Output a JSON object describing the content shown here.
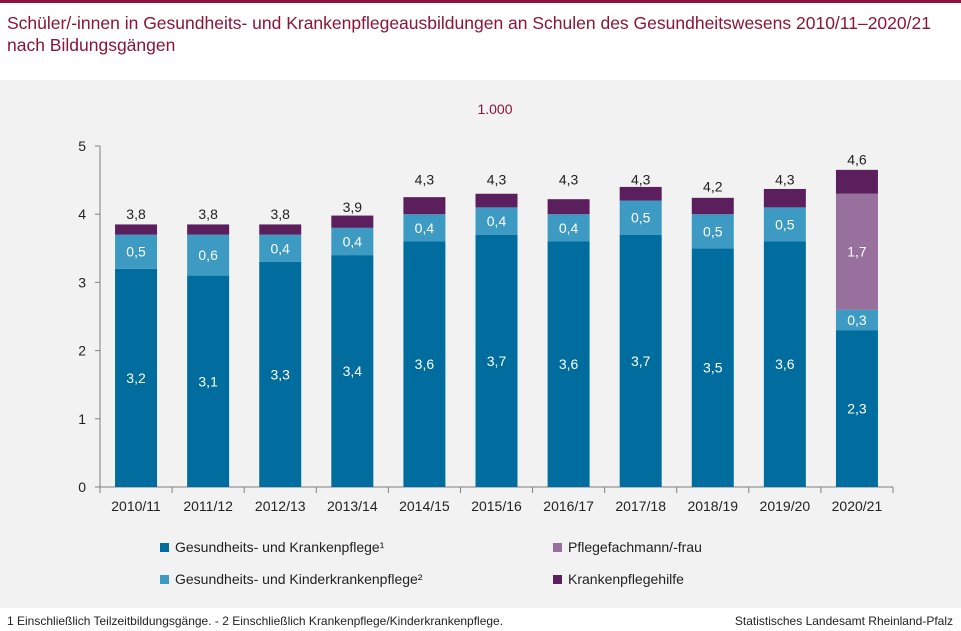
{
  "title": "Schüler/-innen in Gesundheits- und Krankenpflegeausbildungen an Schulen des Gesundheitswesens 2010/11–2020/21 nach Bildungsgängen",
  "unit": "1.000",
  "footnote": "1 Einschließlich Teilzeitbildungsgänge.   - 2 Einschließlich Krankenpflege/Kinderkrankenpflege.",
  "source": "Statistisches Landesamt Rheinland-Pfalz",
  "chart_data": {
    "type": "bar",
    "stacked": true,
    "categories": [
      "2010/11",
      "2011/12",
      "2012/13",
      "2013/14",
      "2014/15",
      "2015/16",
      "2016/17",
      "2017/18",
      "2018/19",
      "2019/20",
      "2020/21"
    ],
    "series": [
      {
        "name": "Gesundheits- und Krankenpflege¹",
        "color": "#006d9e",
        "values": [
          3.2,
          3.1,
          3.3,
          3.4,
          3.6,
          3.7,
          3.6,
          3.7,
          3.5,
          3.6,
          2.3
        ],
        "labels": [
          "3,2",
          "3,1",
          "3,3",
          "3,4",
          "3,6",
          "3,7",
          "3,6",
          "3,7",
          "3,5",
          "3,6",
          "2,3"
        ]
      },
      {
        "name": "Gesundheits- und Kinderkrankenpflege²",
        "color": "#3d9bc3",
        "values": [
          0.5,
          0.6,
          0.4,
          0.4,
          0.4,
          0.4,
          0.4,
          0.5,
          0.5,
          0.5,
          0.3
        ],
        "labels": [
          "0,5",
          "0,6",
          "0,4",
          "0,4",
          "0,4",
          "0,4",
          "0,4",
          "0,5",
          "0,5",
          "0,5",
          "0,3"
        ]
      },
      {
        "name": "Pflegefachmann/-frau",
        "color": "#98709e",
        "values": [
          0,
          0,
          0,
          0,
          0,
          0,
          0,
          0,
          0,
          0,
          1.7
        ],
        "labels": [
          "",
          "",
          "",
          "",
          "",
          "",
          "",
          "",
          "",
          "",
          "1,7"
        ]
      },
      {
        "name": "Krankenpflegehilfe",
        "color": "#5b1f5e",
        "values": [
          0.15,
          0.15,
          0.15,
          0.18,
          0.25,
          0.2,
          0.22,
          0.2,
          0.24,
          0.27,
          0.35
        ],
        "labels": [
          "",
          "",
          "",
          "",
          "",
          "",
          "",
          "",
          "",
          "",
          ""
        ]
      }
    ],
    "totals": [
      3.8,
      3.8,
      3.8,
      3.9,
      4.3,
      4.3,
      4.3,
      4.3,
      4.2,
      4.3,
      4.6
    ],
    "total_labels": [
      "3,8",
      "3,8",
      "3,8",
      "3,9",
      "4,3",
      "4,3",
      "4,3",
      "4,3",
      "4,2",
      "4,3",
      "4,6"
    ],
    "ylim": [
      0,
      5
    ],
    "yticks": [
      "0",
      "1",
      "2",
      "3",
      "4",
      "5"
    ],
    "legend_position": "bottom",
    "grid": false
  }
}
